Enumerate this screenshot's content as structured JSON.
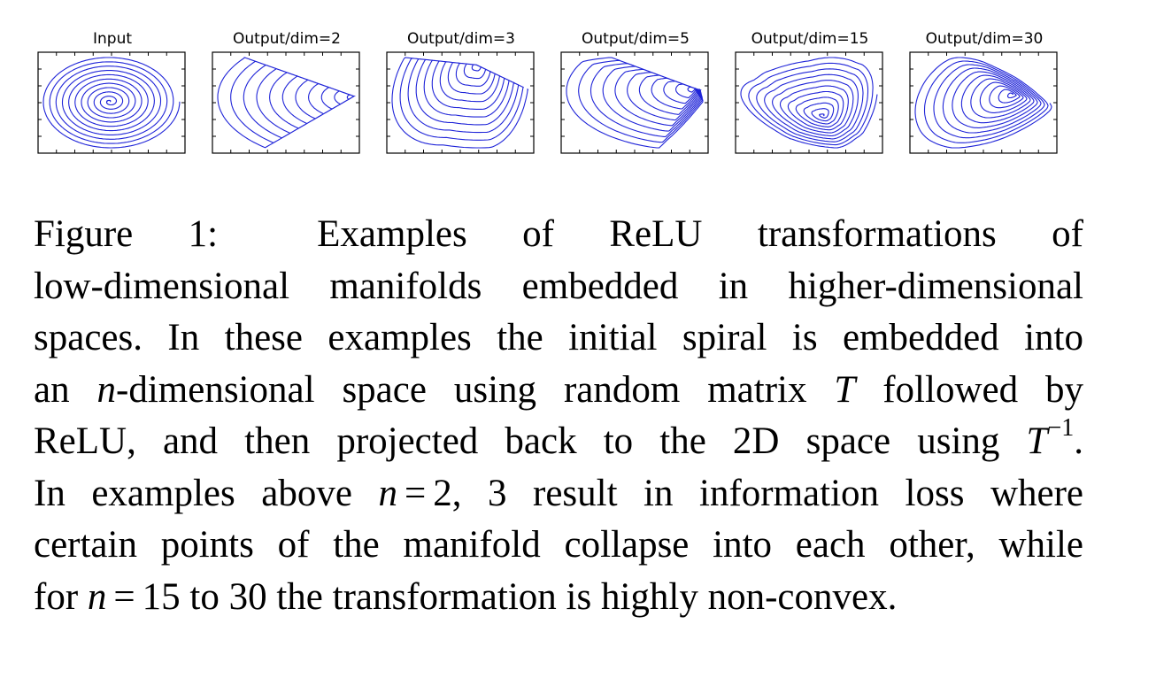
{
  "figure": {
    "panels": [
      {
        "title": "Input",
        "kind": "input"
      },
      {
        "title": "Output/dim=2",
        "kind": "dim2"
      },
      {
        "title": "Output/dim=3",
        "kind": "dim3"
      },
      {
        "title": "Output/dim=5",
        "kind": "dim5"
      },
      {
        "title": "Output/dim=15",
        "kind": "dim15"
      },
      {
        "title": "Output/dim=30",
        "kind": "dim30"
      }
    ],
    "curve_color": "#1f24d8"
  },
  "caption": {
    "label": "Figure 1:",
    "l1": "Examples of ReLU transformations of",
    "l2": "low-dimensional manifolds embedded in higher-dimensional",
    "l3": "spaces. In these examples the initial spiral is embedded into",
    "l4a": "an ",
    "n": "n",
    "l4b": "-dimensional space using random matrix ",
    "T": "T",
    "l4c": " followed by",
    "l5a": "ReLU, and then projected back to the 2D space using ",
    "l5sup": "−1",
    "l5b": ".",
    "l6a": "In examples above ",
    "eq": "=",
    "l6b": "2, 3",
    "l6c": " result in information loss where",
    "l7": "certain points of the manifold collapse into each other, while",
    "l8a": "for ",
    "l8b": "15",
    "l8c": " to 30 the transformation is highly non-convex."
  }
}
